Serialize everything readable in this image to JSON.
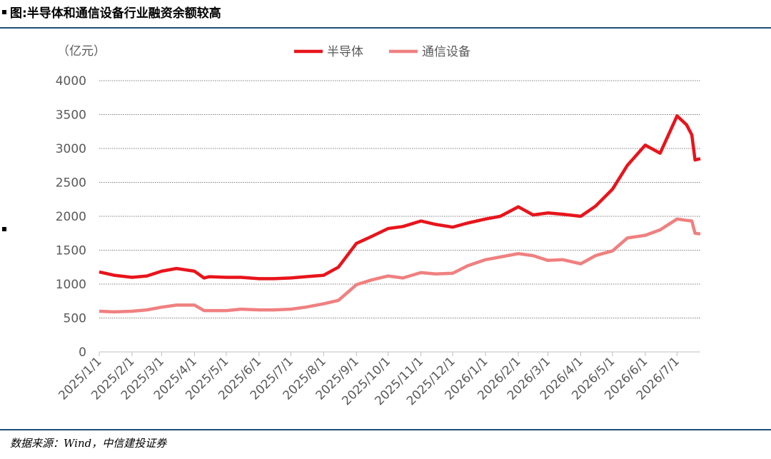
{
  "header": {
    "title": "图:半导体和通信设备行业融资余额较高"
  },
  "footer": {
    "source": "数据来源：Wind，中信建投证券"
  },
  "chart_data": {
    "type": "line",
    "y_label": "（亿元）",
    "x": [
      "2025/1/1",
      "2025/1/15",
      "2025/2/1",
      "2025/2/15",
      "2025/3/1",
      "2025/3/15",
      "2025/4/1",
      "2025/4/10",
      "2025/4/15",
      "2025/5/1",
      "2025/5/15",
      "2025/6/1",
      "2025/6/15",
      "2025/7/1",
      "2025/7/15",
      "2025/8/1",
      "2025/8/15",
      "2025/9/1",
      "2025/9/15",
      "2025/10/1",
      "2025/10/15",
      "2025/11/1",
      "2025/11/15",
      "2025/12/1",
      "2025/12/15",
      "2026/1/1",
      "2026/1/15",
      "2026/2/1",
      "2026/2/15",
      "2026/3/1",
      "2026/3/15",
      "2026/4/1",
      "2026/4/15",
      "2026/5/1",
      "2026/5/15",
      "2026/6/1",
      "2026/6/15",
      "2026/7/1",
      "2026/7/10",
      "2026/7/15",
      "2026/7/18",
      "2026/7/23"
    ],
    "series": [
      {
        "name": "半导体",
        "color": "#e8141b",
        "width": 4.5,
        "values": [
          1180,
          1130,
          1100,
          1120,
          1190,
          1230,
          1190,
          1090,
          1110,
          1100,
          1100,
          1080,
          1080,
          1090,
          1110,
          1130,
          1250,
          1600,
          1700,
          1820,
          1850,
          1930,
          1880,
          1840,
          1900,
          1960,
          2000,
          2140,
          2020,
          2050,
          2030,
          2000,
          2150,
          2400,
          2750,
          3050,
          2930,
          3480,
          3350,
          3200,
          2830,
          2850
        ]
      },
      {
        "name": "通信设备",
        "color": "#f08080",
        "width": 4.5,
        "values": [
          600,
          590,
          600,
          620,
          660,
          690,
          690,
          610,
          610,
          610,
          630,
          620,
          620,
          630,
          660,
          710,
          760,
          990,
          1060,
          1120,
          1090,
          1170,
          1150,
          1160,
          1270,
          1360,
          1400,
          1450,
          1420,
          1350,
          1360,
          1300,
          1420,
          1490,
          1680,
          1720,
          1800,
          1960,
          1940,
          1930,
          1750,
          1740
        ]
      }
    ],
    "xlim": [
      "2025/1/1",
      "2026/7/23"
    ],
    "xticks": [
      "2025/1/1",
      "2025/2/1",
      "2025/3/1",
      "2025/4/1",
      "2025/5/1",
      "2025/6/1",
      "2025/7/1",
      "2025/8/1",
      "2025/9/1",
      "2025/10/1",
      "2025/11/1",
      "2025/12/1",
      "2026/1/1",
      "2026/2/1",
      "2026/3/1",
      "2026/4/1",
      "2026/5/1",
      "2026/6/1",
      "2026/7/1"
    ],
    "ylim": [
      0,
      4000
    ],
    "yticks": [
      0,
      500,
      1000,
      1500,
      2000,
      2500,
      3000,
      3500,
      4000
    ],
    "grid": true
  }
}
